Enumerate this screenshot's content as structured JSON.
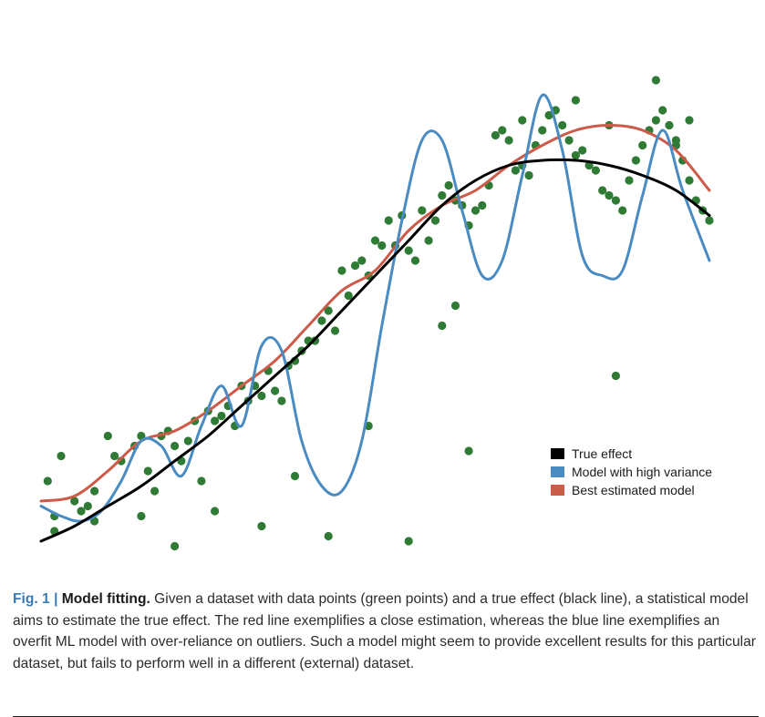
{
  "chart_data": {
    "type": "scatter",
    "title": "",
    "xlabel": "",
    "ylabel": "",
    "xlim": [
      0,
      100
    ],
    "ylim": [
      0,
      100
    ],
    "grid": false,
    "legend_position": "bottom-right",
    "points_color": "#2f7a34",
    "points": [
      [
        1,
        14
      ],
      [
        2,
        7
      ],
      [
        3,
        19
      ],
      [
        5,
        10
      ],
      [
        6,
        8
      ],
      [
        7,
        9
      ],
      [
        8,
        12
      ],
      [
        10,
        23
      ],
      [
        11,
        19
      ],
      [
        12,
        18
      ],
      [
        14,
        21
      ],
      [
        15,
        23
      ],
      [
        16,
        16
      ],
      [
        17,
        12
      ],
      [
        18,
        23
      ],
      [
        19,
        24
      ],
      [
        20,
        21
      ],
      [
        21,
        18
      ],
      [
        22,
        22
      ],
      [
        23,
        26
      ],
      [
        24,
        14
      ],
      [
        25,
        28
      ],
      [
        26,
        26
      ],
      [
        27,
        27
      ],
      [
        28,
        29
      ],
      [
        29,
        25
      ],
      [
        30,
        33
      ],
      [
        31,
        30
      ],
      [
        32,
        33
      ],
      [
        33,
        31
      ],
      [
        34,
        36
      ],
      [
        35,
        32
      ],
      [
        36,
        30
      ],
      [
        37,
        37
      ],
      [
        38,
        38
      ],
      [
        39,
        40
      ],
      [
        40,
        42
      ],
      [
        41,
        42
      ],
      [
        42,
        46
      ],
      [
        43,
        48
      ],
      [
        44,
        44
      ],
      [
        45,
        56
      ],
      [
        46,
        51
      ],
      [
        47,
        57
      ],
      [
        48,
        58
      ],
      [
        49,
        55
      ],
      [
        50,
        62
      ],
      [
        51,
        61
      ],
      [
        52,
        66
      ],
      [
        53,
        61
      ],
      [
        54,
        67
      ],
      [
        55,
        60
      ],
      [
        56,
        58
      ],
      [
        57,
        68
      ],
      [
        58,
        62
      ],
      [
        59,
        66
      ],
      [
        60,
        71
      ],
      [
        61,
        73
      ],
      [
        62,
        70
      ],
      [
        63,
        69
      ],
      [
        64,
        65
      ],
      [
        65,
        68
      ],
      [
        66,
        69
      ],
      [
        67,
        73
      ],
      [
        68,
        83
      ],
      [
        69,
        84
      ],
      [
        70,
        82
      ],
      [
        71,
        76
      ],
      [
        72,
        77
      ],
      [
        73,
        75
      ],
      [
        74,
        81
      ],
      [
        75,
        84
      ],
      [
        76,
        87
      ],
      [
        77,
        88
      ],
      [
        78,
        85
      ],
      [
        79,
        82
      ],
      [
        80,
        79
      ],
      [
        81,
        80
      ],
      [
        82,
        77
      ],
      [
        83,
        76
      ],
      [
        84,
        72
      ],
      [
        85,
        71
      ],
      [
        86,
        70
      ],
      [
        87,
        68
      ],
      [
        88,
        74
      ],
      [
        89,
        78
      ],
      [
        90,
        81
      ],
      [
        91,
        84
      ],
      [
        92,
        86
      ],
      [
        93,
        88
      ],
      [
        94,
        85
      ],
      [
        95,
        81
      ],
      [
        96,
        78
      ],
      [
        97,
        74
      ],
      [
        98,
        70
      ],
      [
        99,
        68
      ],
      [
        100,
        66
      ],
      [
        2,
        4
      ],
      [
        8,
        6
      ],
      [
        15,
        7
      ],
      [
        20,
        1
      ],
      [
        26,
        8
      ],
      [
        33,
        5
      ],
      [
        38,
        15
      ],
      [
        43,
        3
      ],
      [
        49,
        25
      ],
      [
        55,
        2
      ],
      [
        60,
        45
      ],
      [
        62,
        49
      ],
      [
        64,
        20
      ],
      [
        72,
        86
      ],
      [
        80,
        90
      ],
      [
        95,
        82
      ],
      [
        97,
        86
      ],
      [
        85,
        85
      ],
      [
        86,
        35
      ],
      [
        92,
        94
      ]
    ],
    "series": [
      {
        "name": "True effect",
        "color": "#000000",
        "x": [
          0,
          5,
          10,
          15,
          20,
          25,
          30,
          35,
          40,
          45,
          50,
          55,
          60,
          65,
          70,
          75,
          80,
          85,
          90,
          95,
          100
        ],
        "y": [
          2,
          5,
          9,
          13,
          18,
          23,
          29,
          35,
          41,
          48,
          55,
          62,
          69,
          74,
          77,
          78,
          78,
          77,
          75,
          72,
          67
        ]
      },
      {
        "name": "Model with high variance",
        "color": "#4a8bc2",
        "x": [
          0,
          3,
          6,
          9,
          12,
          15,
          18,
          21,
          24,
          27,
          30,
          33,
          36,
          39,
          42,
          45,
          48,
          51,
          54,
          57,
          60,
          63,
          66,
          69,
          72,
          75,
          78,
          81,
          84,
          87,
          90,
          93,
          96,
          100
        ],
        "y": [
          9,
          7,
          6,
          8,
          14,
          22,
          21,
          15,
          25,
          33,
          25,
          41,
          40,
          22,
          13,
          12,
          22,
          45,
          66,
          82,
          82,
          68,
          55,
          58,
          75,
          91,
          80,
          59,
          55,
          56,
          71,
          84,
          72,
          58
        ]
      },
      {
        "name": "Best estimated model",
        "color": "#cc5b4a",
        "x": [
          0,
          5,
          10,
          15,
          20,
          25,
          30,
          35,
          40,
          45,
          50,
          55,
          60,
          65,
          70,
          75,
          80,
          85,
          90,
          95,
          100
        ],
        "y": [
          10,
          11,
          16,
          22,
          24,
          28,
          33,
          38,
          45,
          52,
          56,
          64,
          69,
          72,
          77,
          81,
          84,
          85,
          84,
          80,
          72
        ]
      }
    ],
    "legend": [
      "True effect",
      "Model with high variance",
      "Best estimated model"
    ]
  },
  "caption": {
    "label": "Fig. 1",
    "separator": "|",
    "title": "Model fitting.",
    "text": " Given a dataset with data points (green points) and a true effect (black line), a statistical model aims to estimate the true effect. The red line exemplifies a close estimation, whereas the blue line exemplifies an overfit ML model with over-reliance on outliers. Such a model might seem to provide excellent results for this particular dataset, but fails to perform well in a different (external) dataset."
  }
}
